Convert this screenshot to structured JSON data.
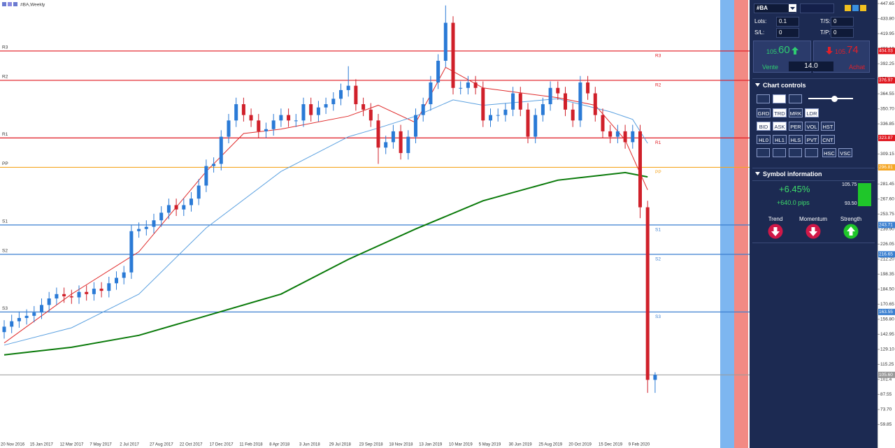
{
  "chart_data": {
    "type": "candlestick",
    "title": "#BA,Weekly",
    "categories": [
      "20 Nov 2016",
      null,
      null,
      null,
      "15 Jan 2017",
      null,
      null,
      null,
      "12 Mar 2017",
      null,
      null,
      null,
      "7 May 2017",
      null,
      null,
      null,
      "2 Jul 2017",
      null,
      null,
      null,
      "27 Aug 2017",
      null,
      null,
      null,
      "22 Oct 2017",
      null,
      null,
      null,
      "17 Dec 2017",
      null,
      null,
      null,
      "11 Feb 2018",
      null,
      null,
      null,
      "8 Apr 2018",
      null,
      null,
      null,
      "3 Jun 2018",
      null,
      null,
      null,
      "29 Jul 2018",
      null,
      null,
      null,
      "23 Sep 2018",
      null,
      null,
      null,
      "18 Nov 2018",
      null,
      null,
      null,
      "13 Jan 2019",
      null,
      null,
      null,
      "10 Mar 2019",
      null,
      null,
      null,
      "5 May 2019",
      null,
      null,
      null,
      "30 Jun 2019",
      null,
      null,
      null,
      "25 Aug 2019",
      null,
      null,
      null,
      "20 Oct 2019",
      null,
      null,
      null,
      "15 Dec 2019",
      null,
      null,
      null,
      "9 Feb 2020",
      null,
      null,
      null
    ],
    "open": [
      145,
      150,
      155,
      158,
      160,
      163,
      170,
      176,
      180,
      178,
      177,
      182,
      180,
      185,
      183,
      190,
      195,
      200,
      238,
      240,
      242,
      248,
      255,
      262,
      258,
      262,
      268,
      280,
      298,
      300,
      325,
      340,
      355,
      345,
      340,
      330,
      332,
      340,
      345,
      340,
      340,
      355,
      345,
      352,
      355,
      360,
      368,
      372,
      355,
      350,
      340,
      315,
      320,
      330,
      310,
      325,
      345,
      355,
      375,
      395,
      430,
      370,
      370,
      375,
      370,
      340,
      345,
      345,
      350,
      365,
      350,
      325,
      345,
      355,
      370,
      365,
      350,
      340,
      375,
      365,
      345,
      330,
      325,
      330,
      320,
      330,
      260,
      101
    ],
    "high": [
      156,
      161,
      164,
      166,
      169,
      176,
      182,
      186,
      186,
      184,
      188,
      188,
      191,
      191,
      196,
      201,
      206,
      244,
      246,
      248,
      254,
      261,
      268,
      268,
      268,
      274,
      286,
      304,
      306,
      331,
      346,
      361,
      361,
      351,
      346,
      338,
      346,
      351,
      351,
      346,
      361,
      361,
      358,
      361,
      366,
      374,
      390,
      378,
      361,
      356,
      346,
      326,
      336,
      336,
      331,
      351,
      361,
      381,
      401,
      446,
      436,
      376,
      381,
      381,
      376,
      351,
      351,
      356,
      371,
      371,
      356,
      351,
      361,
      376,
      376,
      371,
      356,
      381,
      381,
      371,
      351,
      336,
      336,
      336,
      336,
      336,
      266,
      108
    ],
    "low": [
      139,
      144,
      149,
      152,
      154,
      157,
      164,
      170,
      172,
      171,
      171,
      174,
      174,
      177,
      177,
      184,
      189,
      194,
      232,
      234,
      236,
      242,
      249,
      252,
      252,
      256,
      262,
      274,
      292,
      294,
      319,
      334,
      339,
      334,
      324,
      324,
      326,
      334,
      334,
      334,
      334,
      339,
      339,
      346,
      349,
      354,
      362,
      349,
      344,
      334,
      300,
      309,
      314,
      304,
      304,
      319,
      339,
      349,
      369,
      389,
      364,
      364,
      364,
      364,
      334,
      334,
      339,
      339,
      344,
      344,
      319,
      319,
      339,
      349,
      359,
      344,
      334,
      334,
      359,
      339,
      324,
      319,
      319,
      314,
      314,
      250,
      89,
      89
    ],
    "close": [
      150,
      155,
      158,
      160,
      163,
      170,
      176,
      180,
      178,
      177,
      182,
      180,
      185,
      183,
      190,
      195,
      200,
      238,
      240,
      242,
      248,
      255,
      262,
      258,
      262,
      268,
      280,
      298,
      300,
      325,
      340,
      355,
      345,
      340,
      330,
      332,
      340,
      345,
      340,
      340,
      355,
      345,
      352,
      355,
      360,
      368,
      372,
      355,
      350,
      340,
      315,
      320,
      330,
      310,
      325,
      345,
      355,
      375,
      395,
      430,
      370,
      370,
      375,
      370,
      340,
      345,
      345,
      350,
      365,
      350,
      325,
      345,
      355,
      370,
      365,
      350,
      340,
      375,
      365,
      345,
      330,
      325,
      330,
      320,
      330,
      260,
      101,
      105.6
    ],
    "up_color": "#2a7ad6",
    "down_color": "#d0202a",
    "moving_averages": [
      {
        "color": "#e02a2a",
        "x": [
          0,
          9,
          18,
          27,
          32,
          37,
          46,
          50,
          55,
          59,
          64,
          74,
          79,
          83,
          86
        ],
        "values": [
          135,
          180,
          219,
          293,
          328,
          332,
          344,
          354,
          338,
          389,
          370,
          361,
          354,
          322,
          276
        ]
      },
      {
        "color": "#5aa0e0",
        "x": [
          0,
          9,
          18,
          27,
          37,
          46,
          50,
          55,
          60,
          64,
          74,
          81,
          84,
          86
        ],
        "values": [
          133,
          149,
          180,
          241,
          293,
          325,
          333,
          344,
          359,
          354,
          360,
          348,
          341,
          319
        ]
      },
      {
        "color": "#0a7a0a",
        "x": [
          0,
          9,
          18,
          27,
          37,
          46,
          55,
          64,
          74,
          83,
          86
        ],
        "values": [
          124,
          131,
          142,
          160,
          180,
          212,
          240,
          266,
          285,
          292,
          288
        ]
      }
    ],
    "levels": [
      {
        "name": "R3",
        "value": 404.03,
        "color": "#e0161e"
      },
      {
        "name": "R2",
        "value": 376.97,
        "color": "#e0161e"
      },
      {
        "name": "R1",
        "value": 323.87,
        "color": "#e0161e"
      },
      {
        "name": "PP",
        "value": 296.81,
        "color": "#f5a623"
      },
      {
        "name": "S1",
        "value": 243.71,
        "color": "#3a7fd0"
      },
      {
        "name": "S2",
        "value": 216.65,
        "color": "#3a7fd0"
      },
      {
        "name": "S3",
        "value": 163.55,
        "color": "#3a7fd0"
      }
    ],
    "current_price": {
      "value": 105.6,
      "label": "105.60",
      "color": "#9a9a9a"
    },
    "ylim": [
      44,
      451
    ],
    "yticks": [
      447.65,
      {
        "value": 433.8,
        "label": "433.80"
      },
      419.95,
      {
        "value": 406.1,
        "label": "406.10"
      },
      392.25,
      {
        "value": 378.4,
        "label": "378.40"
      },
      364.55,
      {
        "value": 350.7,
        "label": "350.70"
      },
      336.85,
      {
        "value": 323,
        "label": "323.00"
      },
      309.15,
      {
        "value": 295.3,
        "label": "295.30"
      },
      281.45,
      {
        "value": 267.6,
        "label": "267.60"
      },
      253.75,
      {
        "value": 239.9,
        "label": "239.90"
      },
      226.05,
      {
        "value": 212.2,
        "label": "212.20"
      },
      198.35,
      {
        "value": 184.5,
        "label": "184.50"
      },
      170.65,
      {
        "value": 156.8,
        "label": "156.80"
      },
      142.95,
      {
        "value": 129.1,
        "label": "129.10"
      },
      115.25,
      101.4,
      87.55,
      {
        "value": 73.7,
        "label": "73.70"
      },
      59.85
    ],
    "grid": false
  },
  "panel": {
    "symbol": "#BA",
    "lots_label": "Lots:",
    "lots": "0.1",
    "ts_label": "T/S:",
    "ts": "0",
    "sl_label": "S/L:",
    "sl": "0",
    "tp_label": "T/P:",
    "tp": "0",
    "sell": {
      "int": "105.",
      "frac": "60",
      "label": "Vente"
    },
    "buy": {
      "int": "105.",
      "frac": "74",
      "label": "Achat"
    },
    "spread": "14.0",
    "chart_controls": {
      "title": "Chart controls",
      "rows": [
        [
          "GRD",
          "TRD",
          "MRK",
          "LDR"
        ],
        [
          "BID",
          "ASK",
          "PER",
          "VOL",
          "HST"
        ],
        [
          "HL0",
          "HL1",
          "HLS",
          "PVT",
          "CNT"
        ],
        [
          "HSC",
          "VSC"
        ]
      ]
    },
    "symbol_info": {
      "title": "Symbol information",
      "change": "+6.45%",
      "pips": "+640.0 pips",
      "high": "105.75",
      "low": "93.50",
      "indicators": [
        "Trend",
        "Momentum",
        "Strength"
      ]
    }
  }
}
